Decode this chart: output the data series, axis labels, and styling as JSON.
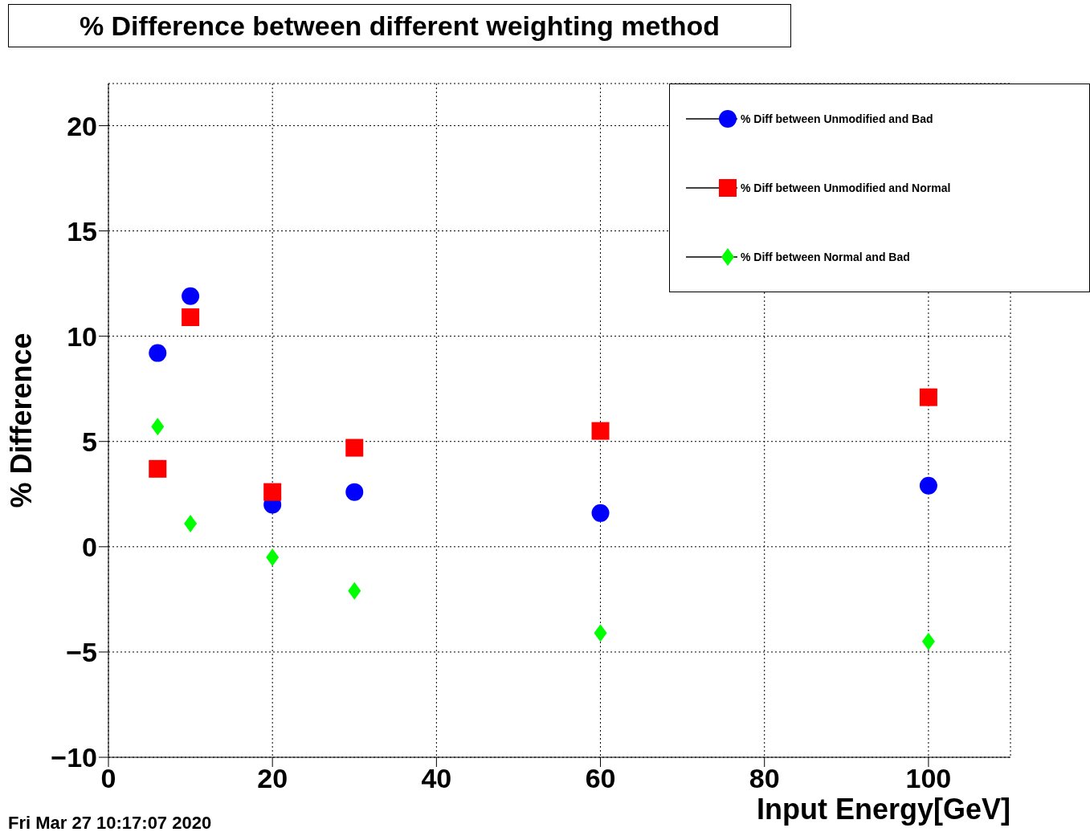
{
  "chart_data": {
    "type": "scatter",
    "title": "% Difference between different weighting method",
    "xlabel": "Input Energy[GeV]",
    "ylabel": "% Difference",
    "x": [
      6,
      10,
      20,
      30,
      60,
      100
    ],
    "series": [
      {
        "name": "% Diff between Unmodified and Bad",
        "color": "#0000ff",
        "marker": "circle",
        "values": [
          9.2,
          11.9,
          2.0,
          2.6,
          1.6,
          2.9
        ]
      },
      {
        "name": "% Diff between Unmodified and Normal",
        "color": "#ff0000",
        "marker": "square",
        "values": [
          3.7,
          10.9,
          2.6,
          4.7,
          5.5,
          7.1
        ]
      },
      {
        "name": "% Diff between Normal and Bad",
        "color": "#00ff00",
        "marker": "diamond",
        "values": [
          5.7,
          1.1,
          -0.5,
          -2.1,
          -4.1,
          -4.5
        ]
      }
    ],
    "xlim": [
      0,
      110
    ],
    "xticks": [
      0,
      20,
      40,
      60,
      80,
      100
    ],
    "ylim": [
      -10,
      22
    ],
    "yticks": [
      {
        "value": -10,
        "label": "−10"
      },
      {
        "value": -5,
        "label": "−5"
      },
      0,
      5,
      10,
      15,
      20
    ],
    "grid": true,
    "legend": "top right",
    "annotations": [
      "Fri Mar 27 10:17:07 2020"
    ]
  }
}
